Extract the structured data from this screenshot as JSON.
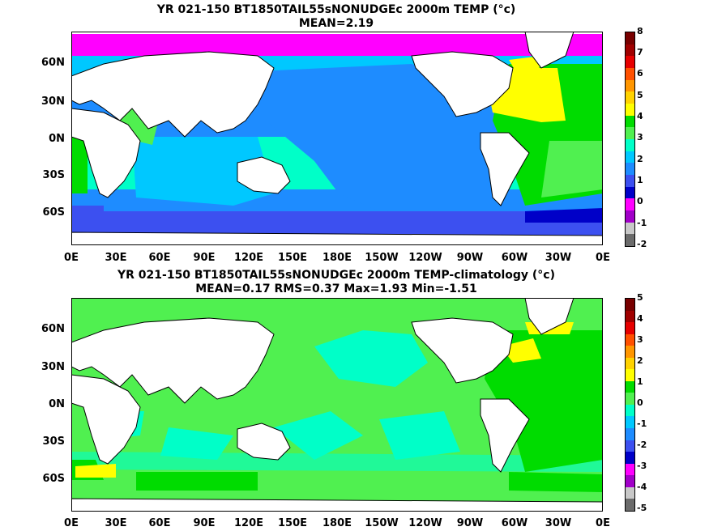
{
  "panels": [
    {
      "title": "YR 021-150 BT1850TAIL55sNONUDGEc 2000m TEMP (°c)",
      "subtitle": "MEAN=2.19",
      "colorbar_ticks": [
        "8",
        "7",
        "6",
        "5",
        "4",
        "3",
        "2",
        "1",
        "0",
        "-1",
        "-2"
      ]
    },
    {
      "title": "YR 021-150 BT1850TAIL55sNONUDGEc 2000m TEMP-climatology (°c)",
      "subtitle": "MEAN=0.17   RMS=0.37   Max=1.93   Min=-1.51",
      "colorbar_ticks": [
        "5",
        "4",
        "3",
        "2",
        "1",
        "0",
        "-1",
        "-2",
        "-3",
        "-4",
        "-5"
      ]
    }
  ],
  "lat_labels": [
    "60N",
    "30N",
    "0N",
    "30S",
    "60S"
  ],
  "lon_labels": [
    "0E",
    "30E",
    "60E",
    "90E",
    "120E",
    "150E",
    "180E",
    "150W",
    "120W",
    "90W",
    "60W",
    "30W",
    "0E"
  ],
  "colorbar_colors": [
    "#6b6b6b",
    "#c8c8c8",
    "#a100c8",
    "#ff00ff",
    "#0000c8",
    "#3c50f0",
    "#1e8cff",
    "#00c8ff",
    "#00ffc8",
    "#50f050",
    "#00dc00",
    "#ffff00",
    "#ffd200",
    "#ff9600",
    "#ff5000",
    "#e60000",
    "#a00000",
    "#780000"
  ],
  "chart_data": [
    {
      "type": "heatmap",
      "title": "YR 021-150 BT1850TAIL55sNONUDGEc 2000m TEMP (°c)",
      "subtitle": "MEAN=2.19",
      "x_ticks": [
        "0E",
        "30E",
        "60E",
        "90E",
        "120E",
        "150E",
        "180E",
        "150W",
        "120W",
        "90W",
        "60W",
        "30W",
        "0E"
      ],
      "y_ticks": [
        "60N",
        "30N",
        "0N",
        "30S",
        "60S"
      ],
      "colorbar_range": [
        -2,
        8
      ],
      "mean": 2.19
    },
    {
      "type": "heatmap",
      "title": "YR 021-150 BT1850TAIL55sNONUDGEc 2000m TEMP-climatology (°c)",
      "subtitle": "MEAN=0.17   RMS=0.37   Max=1.93   Min=-1.51",
      "x_ticks": [
        "0E",
        "30E",
        "60E",
        "90E",
        "120E",
        "150E",
        "180E",
        "150W",
        "120W",
        "90W",
        "60W",
        "30W",
        "0E"
      ],
      "y_ticks": [
        "60N",
        "30N",
        "0N",
        "30S",
        "60S"
      ],
      "colorbar_range": [
        -5,
        5
      ],
      "mean": 0.17,
      "rms": 0.37,
      "max": 1.93,
      "min": -1.51
    }
  ]
}
